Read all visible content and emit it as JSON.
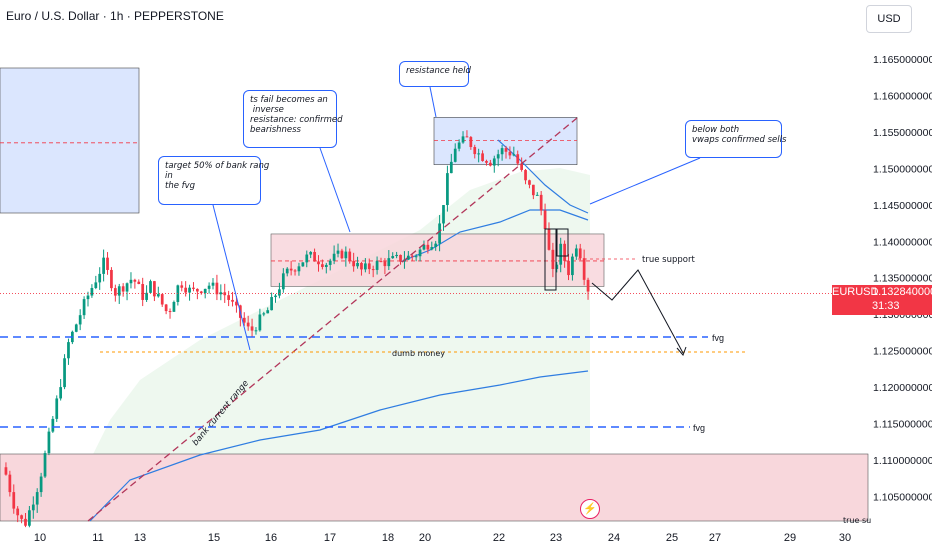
{
  "header": {
    "title": "Euro / U.S. Dollar · 1h · PEPPERSTONE",
    "currency_button": "USD"
  },
  "price_label": {
    "symbol": "EURUSD",
    "price": "1.132840000",
    "countdown": "31:33"
  },
  "annotations": {
    "target": "target 50% of bank rang\nin\nthe fvg",
    "resistance_flip": "ts fail becomes an\n inverse\nresistance: confirmed\nbearishness",
    "resistance_held": "resistance held",
    "below_vwaps": "below both\nvwaps confirmed sells",
    "true_support": "true support",
    "dumb_money": "dumb money",
    "fvg_upper": "fvg",
    "fvg_lower": "fvg",
    "bank_range": "bank current range",
    "true_support_bottom": "true su"
  },
  "icons": {
    "flash": "lightning-icon"
  },
  "colors": {
    "up": "#089981",
    "down": "#f23645",
    "vwap": "#2f7de1",
    "zone_blue": "#dbe6fe",
    "zone_pink": "#f8d7dc",
    "fvg_line": "#2962ff",
    "dumb_money": "#ff9800",
    "trend": "#b2365a"
  },
  "chart_data": {
    "type": "candlestick",
    "symbol": "EURUSD",
    "timeframe": "1h",
    "y_axis": {
      "ticks": [
        "1.165000000",
        "1.160000000",
        "1.155000000",
        "1.150000000",
        "1.145000000",
        "1.140000000",
        "1.135000000",
        "1.130000000",
        "1.125000000",
        "1.120000000",
        "1.115000000",
        "1.110000000",
        "1.105000000"
      ],
      "range": [
        1.1015,
        1.17
      ]
    },
    "x_axis": {
      "ticks": [
        "10",
        "11",
        "13",
        "15",
        "16",
        "17",
        "18",
        "20",
        "22",
        "23",
        "24",
        "25",
        "27",
        "29",
        "30"
      ]
    },
    "anchors": [
      {
        "t": 0,
        "p": 1.109
      },
      {
        "t": 0.02,
        "p": 1.103
      },
      {
        "t": 0.035,
        "p": 1.101
      },
      {
        "t": 0.06,
        "p": 1.107
      },
      {
        "t": 0.09,
        "p": 1.118
      },
      {
        "t": 0.11,
        "p": 1.126
      },
      {
        "t": 0.14,
        "p": 1.132
      },
      {
        "t": 0.17,
        "p": 1.137
      },
      {
        "t": 0.19,
        "p": 1.133
      },
      {
        "t": 0.22,
        "p": 1.135
      },
      {
        "t": 0.24,
        "p": 1.132
      },
      {
        "t": 0.25,
        "p": 1.134
      },
      {
        "t": 0.28,
        "p": 1.13
      },
      {
        "t": 0.3,
        "p": 1.1345
      },
      {
        "t": 0.32,
        "p": 1.133
      },
      {
        "t": 0.35,
        "p": 1.134
      },
      {
        "t": 0.38,
        "p": 1.1325
      },
      {
        "t": 0.4,
        "p": 1.13
      },
      {
        "t": 0.42,
        "p": 1.1275
      },
      {
        "t": 0.45,
        "p": 1.1305
      },
      {
        "t": 0.48,
        "p": 1.1355
      },
      {
        "t": 0.52,
        "p": 1.138
      },
      {
        "t": 0.55,
        "p": 1.137
      },
      {
        "t": 0.58,
        "p": 1.1385
      },
      {
        "t": 0.61,
        "p": 1.136
      },
      {
        "t": 0.64,
        "p": 1.137
      },
      {
        "t": 0.67,
        "p": 1.1375
      },
      {
        "t": 0.7,
        "p": 1.138
      },
      {
        "t": 0.72,
        "p": 1.1395
      },
      {
        "t": 0.74,
        "p": 1.1405
      },
      {
        "t": 0.755,
        "p": 1.148
      },
      {
        "t": 0.77,
        "p": 1.153
      },
      {
        "t": 0.79,
        "p": 1.154
      },
      {
        "t": 0.81,
        "p": 1.152
      },
      {
        "t": 0.83,
        "p": 1.151
      },
      {
        "t": 0.85,
        "p": 1.1525
      },
      {
        "t": 0.87,
        "p": 1.152
      },
      {
        "t": 0.89,
        "p": 1.148
      },
      {
        "t": 0.91,
        "p": 1.146
      },
      {
        "t": 0.925,
        "p": 1.142
      },
      {
        "t": 0.935,
        "p": 1.135
      },
      {
        "t": 0.95,
        "p": 1.139
      },
      {
        "t": 0.965,
        "p": 1.1355
      },
      {
        "t": 0.975,
        "p": 1.14
      },
      {
        "t": 0.985,
        "p": 1.138
      },
      {
        "t": 0.992,
        "p": 1.1345
      },
      {
        "t": 1.0,
        "p": 1.1328
      }
    ],
    "candle_count": 150,
    "levels": {
      "last_price": 1.13284,
      "fvg_upper": 1.127,
      "dumb_money": 1.125,
      "fvg_lower": 1.1145,
      "support_zone": [
        1.1338,
        1.141
      ],
      "resistance_zone": [
        1.1505,
        1.157
      ],
      "resistance_mid": 1.1538,
      "support_mid": 1.1373,
      "left_zone_mid": 1.1535
    }
  }
}
